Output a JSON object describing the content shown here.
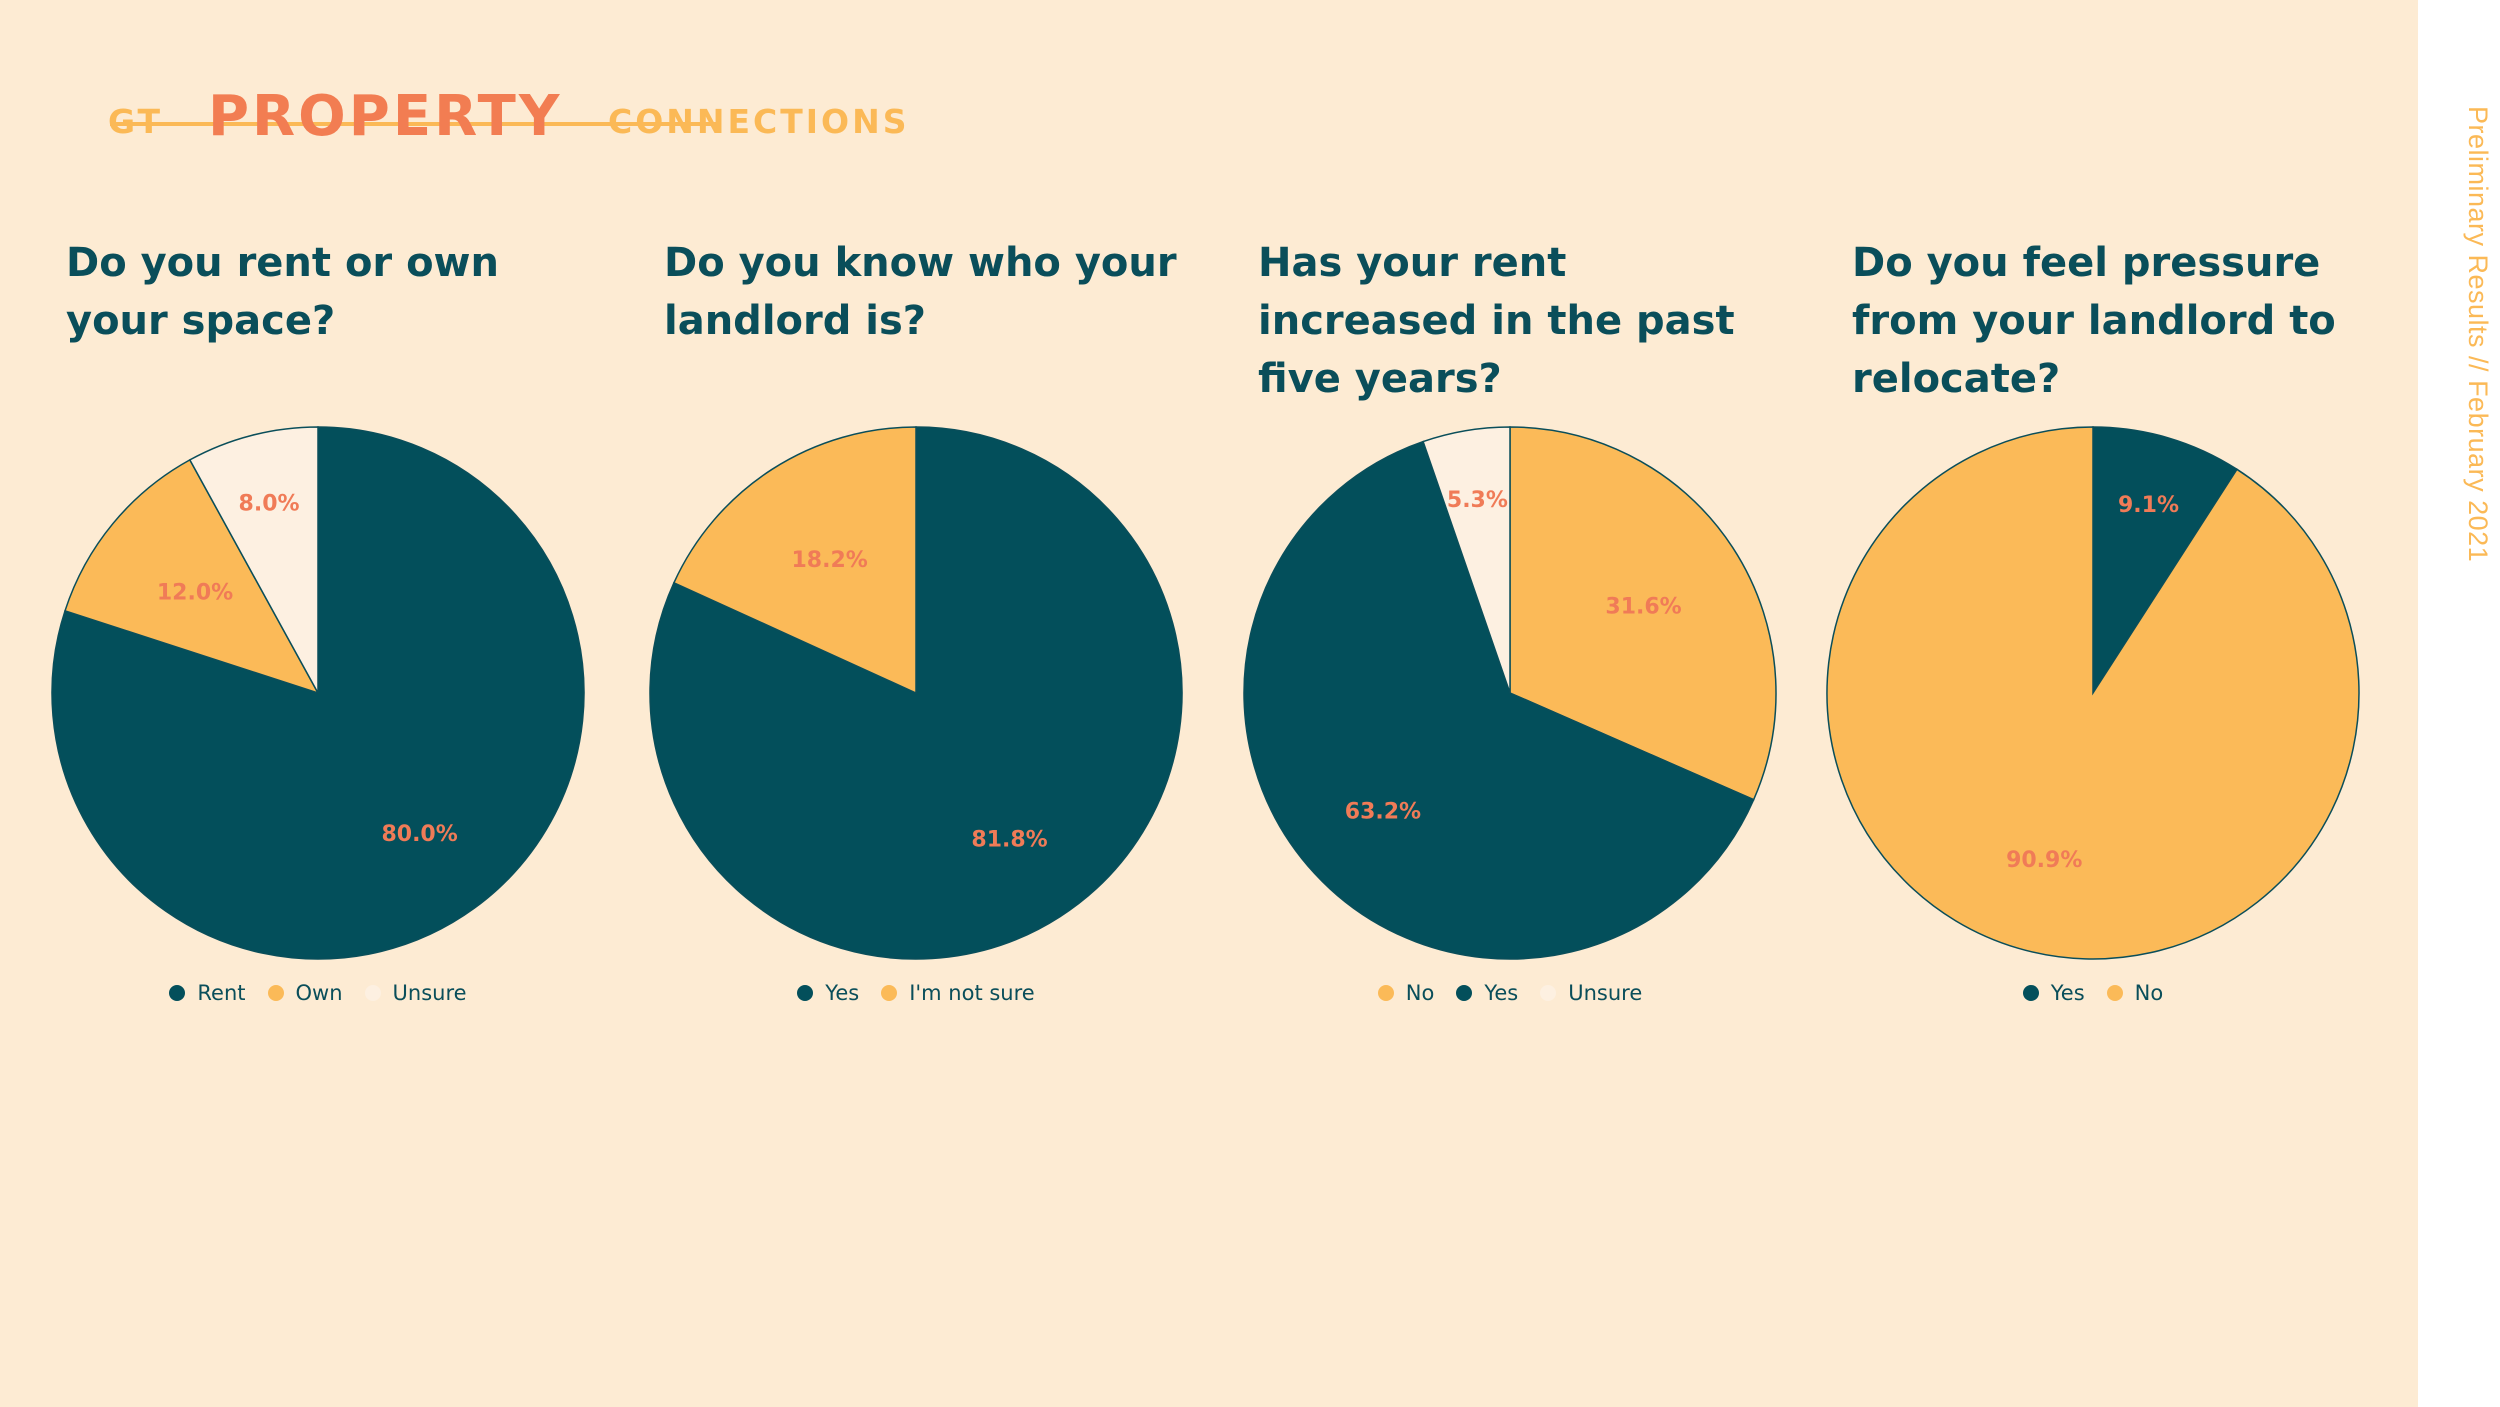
{
  "logo": {
    "left": "GT",
    "main": "PROPERTY",
    "right": "CONNECTIONS"
  },
  "side_note": "Preliminary Results // February 2021",
  "colors": {
    "teal": "#034f5b",
    "gold": "#fbba58",
    "cream": "#fdf0e1",
    "salmon": "#f07b57",
    "background": "#fdebd3"
  },
  "questions": [
    {
      "title": "Do you rent or own your space?"
    },
    {
      "title": "Do you know who your landlord is?"
    },
    {
      "title": "Has your rent increased in the past five years?"
    },
    {
      "title": "Do you feel pressure from your landlord to relocate?"
    }
  ],
  "chart_data": [
    {
      "type": "pie",
      "title": "Do you rent or own your space?",
      "start_at": "top",
      "direction": "clockwise",
      "legend_position": "bottom",
      "slices": [
        {
          "name": "Rent",
          "value": 80.0,
          "label": "80.0%",
          "color": "#034f5b"
        },
        {
          "name": "Own",
          "value": 12.0,
          "label": "12.0%",
          "color": "#fbba58"
        },
        {
          "name": "Unsure",
          "value": 8.0,
          "label": "8.0%",
          "color": "#fdf0e1"
        }
      ],
      "legend": [
        {
          "name": "Rent",
          "color": "#034f5b"
        },
        {
          "name": "Own",
          "color": "#fbba58"
        },
        {
          "name": "Unsure",
          "color": "#fdf0e1"
        }
      ]
    },
    {
      "type": "pie",
      "title": "Do you know who your landlord is?",
      "start_at": "top",
      "direction": "clockwise",
      "legend_position": "bottom",
      "slices": [
        {
          "name": "Yes",
          "value": 81.8,
          "label": "81.8%",
          "color": "#034f5b"
        },
        {
          "name": "I'm not sure",
          "value": 18.2,
          "label": "18.2%",
          "color": "#fbba58"
        }
      ],
      "legend": [
        {
          "name": "Yes",
          "color": "#034f5b"
        },
        {
          "name": "I'm not sure",
          "color": "#fbba58"
        }
      ]
    },
    {
      "type": "pie",
      "title": "Has your rent increased in the past five years?",
      "start_at": "top",
      "direction": "clockwise",
      "legend_position": "bottom",
      "slices": [
        {
          "name": "No",
          "value": 31.6,
          "label": "31.6%",
          "color": "#fbba58"
        },
        {
          "name": "Yes",
          "value": 63.2,
          "label": "63.2%",
          "color": "#034f5b"
        },
        {
          "name": "Unsure",
          "value": 5.3,
          "label": "5.3%",
          "color": "#fdf0e1"
        }
      ],
      "legend": [
        {
          "name": "No",
          "color": "#fbba58"
        },
        {
          "name": "Yes",
          "color": "#034f5b"
        },
        {
          "name": "Unsure",
          "color": "#fdf0e1"
        }
      ]
    },
    {
      "type": "pie",
      "title": "Do you feel pressure from your landlord to relocate?",
      "start_at": "top",
      "direction": "clockwise",
      "legend_position": "bottom",
      "slices": [
        {
          "name": "Yes",
          "value": 9.1,
          "label": "9.1%",
          "color": "#034f5b"
        },
        {
          "name": "No",
          "value": 90.9,
          "label": "90.9%",
          "color": "#fbba58"
        }
      ],
      "legend": [
        {
          "name": "Yes",
          "color": "#034f5b"
        },
        {
          "name": "No",
          "color": "#fbba58"
        }
      ]
    }
  ]
}
